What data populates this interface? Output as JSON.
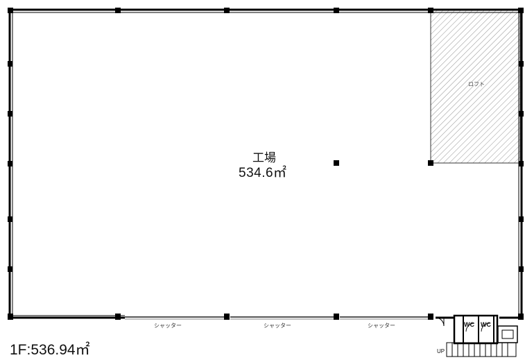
{
  "floor_plan": {
    "floor_label": "1F:536.94㎡",
    "rooms": [
      {
        "name": "工場",
        "area": "534.6㎡"
      },
      {
        "name": "ロフト"
      }
    ],
    "openings": [
      "シャッター",
      "シャッター",
      "シャッター"
    ],
    "toilets": [
      "WC",
      "WC"
    ],
    "stair_label": "UP"
  }
}
